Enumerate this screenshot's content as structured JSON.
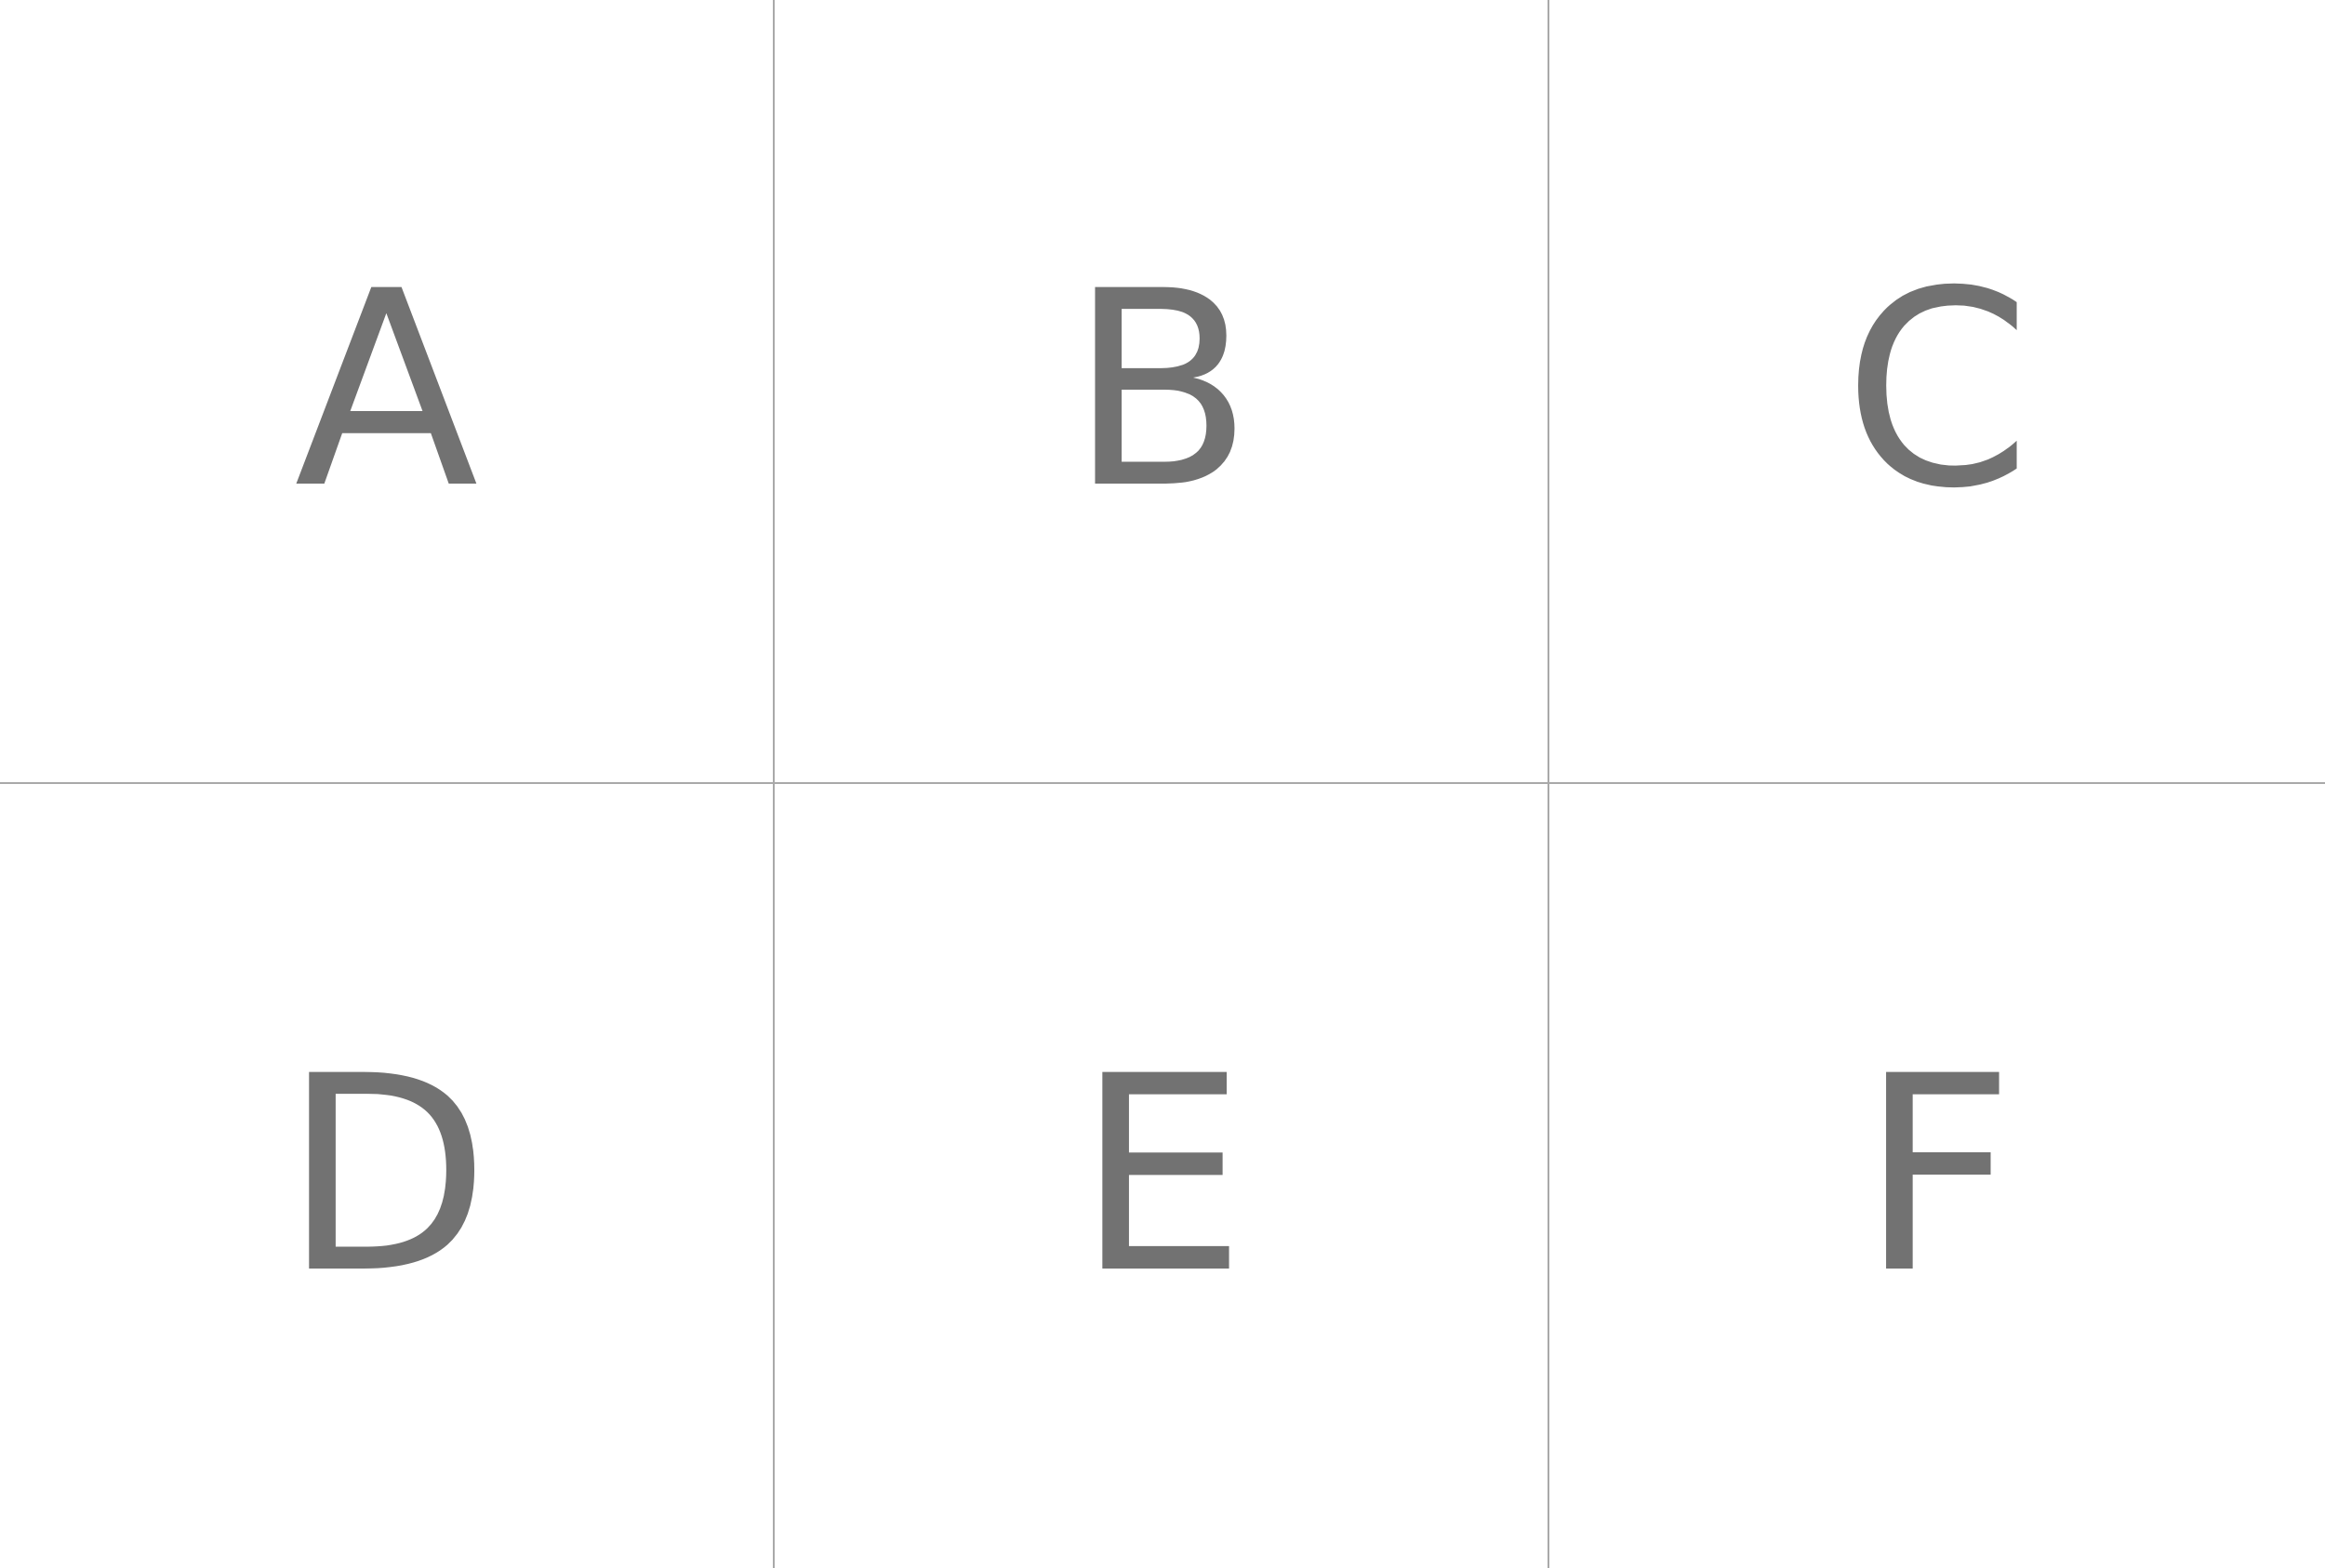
{
  "colors": {
    "letter": "#727272",
    "divider": "#a9a9a9",
    "background": "#ffffff"
  },
  "cells": [
    {
      "label": "A"
    },
    {
      "label": "B"
    },
    {
      "label": "C"
    },
    {
      "label": "D"
    },
    {
      "label": "E"
    },
    {
      "label": "F"
    }
  ]
}
